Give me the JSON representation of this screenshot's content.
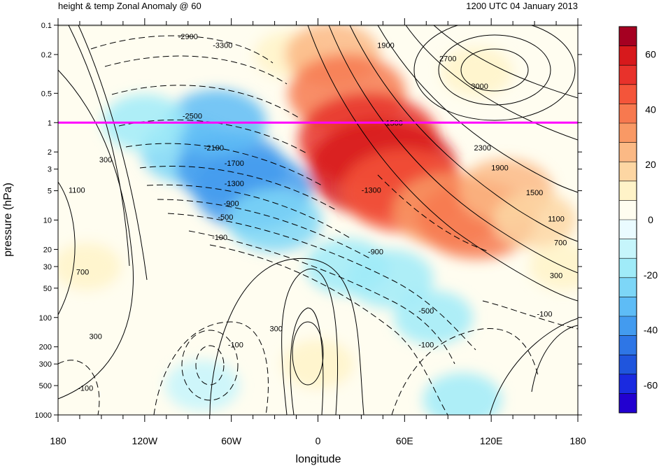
{
  "header": {
    "left_title": "height & temp Zonal Anomaly @ 60",
    "right_title": "1200 UTC 04 January 2013"
  },
  "chart_data": {
    "type": "heatmap",
    "xlabel": "longitude",
    "ylabel": "pressure (hPa)",
    "y_scale": "log",
    "y_inverted": true,
    "xlim": [
      -180,
      180
    ],
    "ylim": [
      1000,
      0.1
    ],
    "x_ticks": [
      {
        "value": -180,
        "label": "180"
      },
      {
        "value": -120,
        "label": "120W"
      },
      {
        "value": -60,
        "label": "60W"
      },
      {
        "value": 0,
        "label": "0"
      },
      {
        "value": 60,
        "label": "60E"
      },
      {
        "value": 120,
        "label": "120E"
      },
      {
        "value": 180,
        "label": "180"
      }
    ],
    "y_ticks": [
      {
        "value": 0.1,
        "label": "0.1"
      },
      {
        "value": 0.2,
        "label": "0.2"
      },
      {
        "value": 0.5,
        "label": "0.5"
      },
      {
        "value": 1,
        "label": "1"
      },
      {
        "value": 2,
        "label": "2"
      },
      {
        "value": 3,
        "label": "3"
      },
      {
        "value": 5,
        "label": "5"
      },
      {
        "value": 10,
        "label": "10"
      },
      {
        "value": 20,
        "label": "20"
      },
      {
        "value": 30,
        "label": "30"
      },
      {
        "value": 50,
        "label": "50"
      },
      {
        "value": 100,
        "label": "100"
      },
      {
        "value": 200,
        "label": "200"
      },
      {
        "value": 300,
        "label": "300"
      },
      {
        "value": 500,
        "label": "500"
      },
      {
        "value": 1000,
        "label": "1000"
      }
    ],
    "reference_line": {
      "pressure": 1,
      "color": "#ff00ff"
    },
    "colorbar": {
      "levels": [
        -70,
        -65,
        -60,
        -55,
        -50,
        -45,
        -40,
        -35,
        -30,
        -25,
        -20,
        -15,
        -10,
        -5,
        0,
        5,
        10,
        15,
        20,
        25,
        30,
        35,
        40,
        45,
        50,
        55,
        60,
        65,
        70
      ],
      "tick_labels": [
        {
          "value": 60,
          "label": "60"
        },
        {
          "value": 40,
          "label": "40"
        },
        {
          "value": 20,
          "label": "20"
        },
        {
          "value": 0,
          "label": "0"
        },
        {
          "value": -20,
          "label": "-20"
        },
        {
          "value": -40,
          "label": "-40"
        },
        {
          "value": -60,
          "label": "-60"
        }
      ],
      "colors_top_to_bottom": [
        "#a50021",
        "#d7191c",
        "#e8322b",
        "#f4553a",
        "#f7794f",
        "#f99965",
        "#fbb985",
        "#fdd6a3",
        "#fff3c8",
        "#fffdf0",
        "#eafbff",
        "#c6f5fb",
        "#a0ebf8",
        "#7dd6f7",
        "#5ebcf6",
        "#439bef",
        "#2e76e6",
        "#1f55dd",
        "#1a2ae0",
        "#2200d0"
      ]
    },
    "temperature_anomaly_cells": [
      {
        "lon": -90,
        "p": 2,
        "value": -25
      },
      {
        "lon": -60,
        "p": 3,
        "value": -35
      },
      {
        "lon": -45,
        "p": 5,
        "value": -40
      },
      {
        "lon": -70,
        "p": 1,
        "value": -28
      },
      {
        "lon": -120,
        "p": 1,
        "value": -18
      },
      {
        "lon": -30,
        "p": 10,
        "value": -25
      },
      {
        "lon": 20,
        "p": 30,
        "value": -18
      },
      {
        "lon": 50,
        "p": 40,
        "value": -20
      },
      {
        "lon": 80,
        "p": 100,
        "value": -15
      },
      {
        "lon": -20,
        "p": 0.2,
        "value": 8
      },
      {
        "lon": 10,
        "p": 0.2,
        "value": 25
      },
      {
        "lon": 20,
        "p": 0.5,
        "value": 40
      },
      {
        "lon": 35,
        "p": 1.5,
        "value": 55
      },
      {
        "lon": 45,
        "p": 3,
        "value": 60
      },
      {
        "lon": 60,
        "p": 5,
        "value": 45
      },
      {
        "lon": 90,
        "p": 8,
        "value": 35
      },
      {
        "lon": 110,
        "p": 10,
        "value": 40
      },
      {
        "lon": 130,
        "p": 5,
        "value": 25
      },
      {
        "lon": 150,
        "p": 10,
        "value": 18
      },
      {
        "lon": 110,
        "p": 0.3,
        "value": 10
      },
      {
        "lon": 170,
        "p": 30,
        "value": 8
      },
      {
        "lon": -160,
        "p": 30,
        "value": 8
      },
      {
        "lon": 0,
        "p": 300,
        "value": 10
      },
      {
        "lon": -80,
        "p": 500,
        "value": -12
      },
      {
        "lon": 100,
        "p": 700,
        "value": -15
      }
    ],
    "contour_labels": [
      {
        "text": "-2900",
        "lon": -90,
        "p": 0.13
      },
      {
        "text": "-3300",
        "lon": -66,
        "p": 0.16
      },
      {
        "text": "1900",
        "lon": 47,
        "p": 0.16
      },
      {
        "text": "2700",
        "lon": 90,
        "p": 0.22
      },
      {
        "text": "3000",
        "lon": 112,
        "p": 0.42
      },
      {
        "text": "-2500",
        "lon": -87,
        "p": 0.85
      },
      {
        "text": "-1500",
        "lon": 52,
        "p": 1
      },
      {
        "text": "-2100",
        "lon": -72,
        "p": 1.8
      },
      {
        "text": "2300",
        "lon": 114,
        "p": 1.8
      },
      {
        "text": "300",
        "lon": -147,
        "p": 2.4
      },
      {
        "text": "-1700",
        "lon": -58,
        "p": 2.6
      },
      {
        "text": "1900",
        "lon": 126,
        "p": 2.9
      },
      {
        "text": "-1300",
        "lon": -58,
        "p": 4.2
      },
      {
        "text": "-1300",
        "lon": 37,
        "p": 4.9
      },
      {
        "text": "1100",
        "lon": -167,
        "p": 4.9
      },
      {
        "text": "1500",
        "lon": 150,
        "p": 5.2
      },
      {
        "text": "-900",
        "lon": -60,
        "p": 6.7
      },
      {
        "text": "-500",
        "lon": -64,
        "p": 9.3
      },
      {
        "text": "1100",
        "lon": 165,
        "p": 9.7
      },
      {
        "text": "-100",
        "lon": -68,
        "p": 15
      },
      {
        "text": "700",
        "lon": 168,
        "p": 17
      },
      {
        "text": "-900",
        "lon": 40,
        "p": 21
      },
      {
        "text": "700",
        "lon": -163,
        "p": 34
      },
      {
        "text": "300",
        "lon": 165,
        "p": 37
      },
      {
        "text": "-500",
        "lon": 75,
        "p": 85
      },
      {
        "text": "-100",
        "lon": 157,
        "p": 92
      },
      {
        "text": "300",
        "lon": -154,
        "p": 155
      },
      {
        "text": "300",
        "lon": -29,
        "p": 130
      },
      {
        "text": "-100",
        "lon": -57,
        "p": 190
      },
      {
        "text": "-100",
        "lon": 75,
        "p": 190
      },
      {
        "text": "-100",
        "lon": -161,
        "p": 530
      }
    ]
  }
}
